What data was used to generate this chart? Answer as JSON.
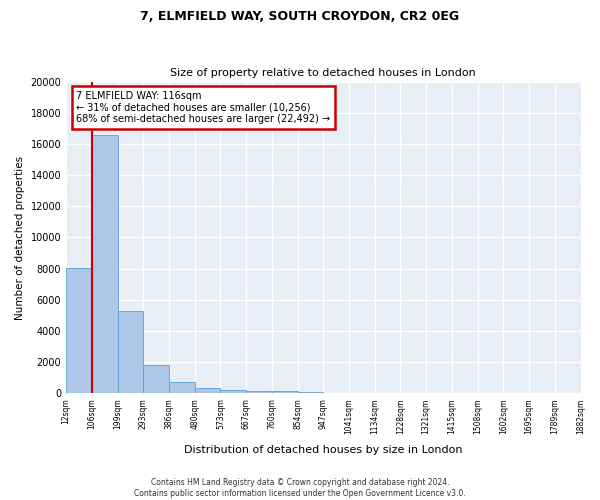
{
  "title1": "7, ELMFIELD WAY, SOUTH CROYDON, CR2 0EG",
  "title2": "Size of property relative to detached houses in London",
  "xlabel": "Distribution of detached houses by size in London",
  "ylabel": "Number of detached properties",
  "bin_edges": [
    12,
    106,
    199,
    293,
    386,
    480,
    573,
    667,
    760,
    854,
    947,
    1041,
    1134,
    1228,
    1321,
    1415,
    1508,
    1602,
    1695,
    1789,
    1882
  ],
  "bin_labels": [
    "12sqm",
    "106sqm",
    "199sqm",
    "293sqm",
    "386sqm",
    "480sqm",
    "573sqm",
    "667sqm",
    "760sqm",
    "854sqm",
    "947sqm",
    "1041sqm",
    "1134sqm",
    "1228sqm",
    "1321sqm",
    "1415sqm",
    "1508sqm",
    "1602sqm",
    "1695sqm",
    "1789sqm",
    "1882sqm"
  ],
  "bar_heights": [
    8050,
    16600,
    5300,
    1800,
    700,
    350,
    200,
    150,
    150,
    80,
    50,
    40,
    30,
    20,
    15,
    10,
    8,
    6,
    5,
    4
  ],
  "bar_color": "#aec6e8",
  "bar_edge_color": "#5a9fd4",
  "property_line_bin": 1,
  "ylim": [
    0,
    20000
  ],
  "yticks": [
    0,
    2000,
    4000,
    6000,
    8000,
    10000,
    12000,
    14000,
    16000,
    18000,
    20000
  ],
  "annotation_line1": "7 ELMFIELD WAY: 116sqm",
  "annotation_line2": "← 31% of detached houses are smaller (10,256)",
  "annotation_line3": "68% of semi-detached houses are larger (22,492) →",
  "annotation_box_color": "#cc0000",
  "background_color": "#e8eef5",
  "grid_color": "#ffffff",
  "footer_line1": "Contains HM Land Registry data © Crown copyright and database right 2024.",
  "footer_line2": "Contains public sector information licensed under the Open Government Licence v3.0."
}
